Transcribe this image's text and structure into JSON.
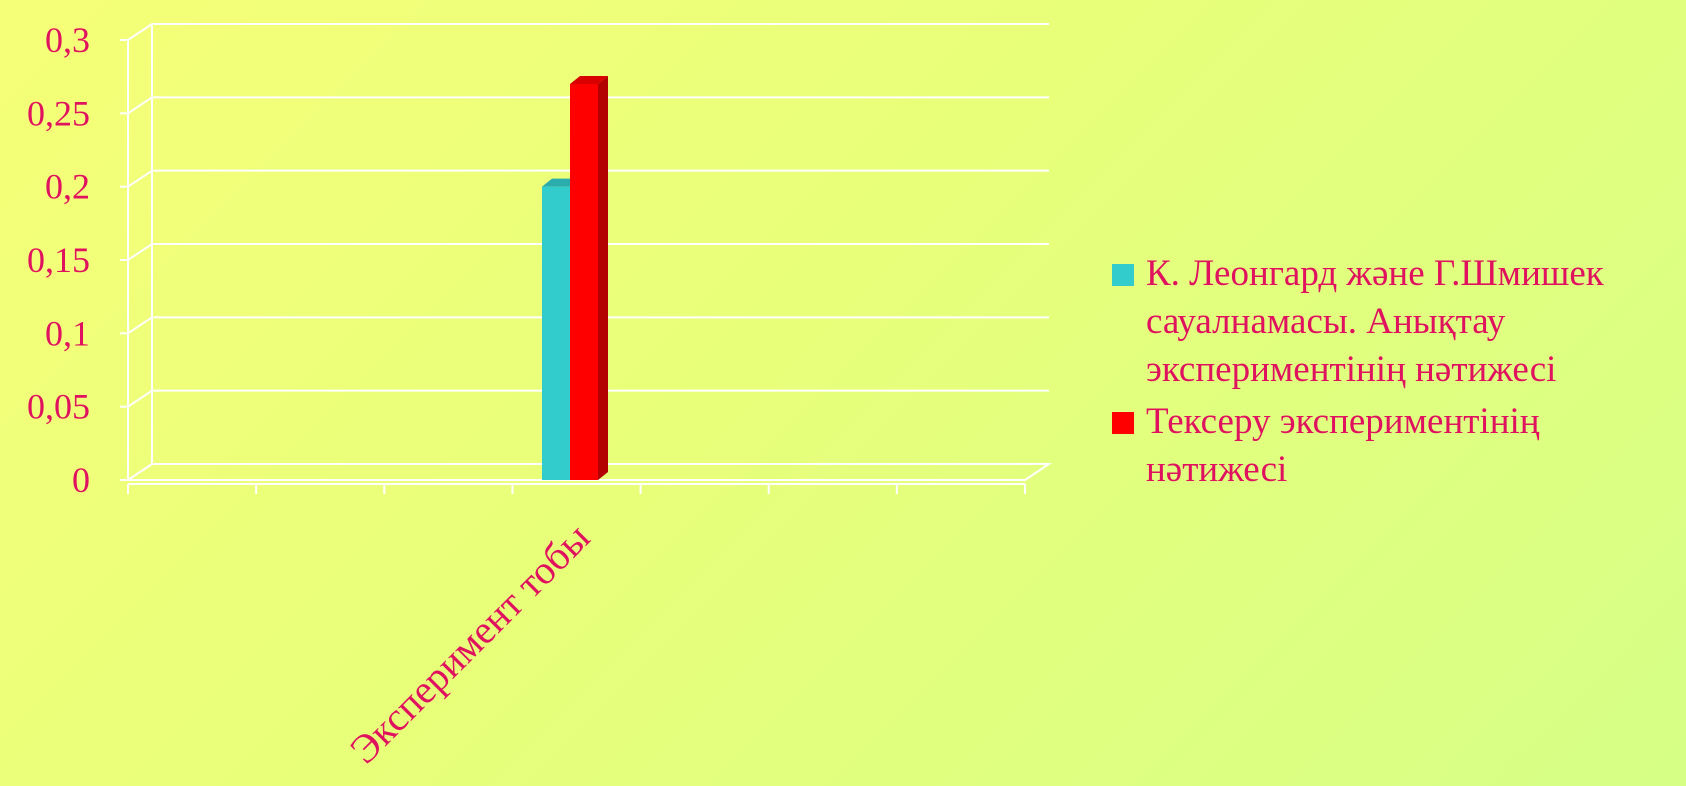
{
  "chart_data": {
    "type": "bar",
    "categories": [
      "Эксперимент тобы"
    ],
    "series": [
      {
        "name": "К. Леонгард және Г.Шмишек сауалнамасы. Анықтау экспериментінің нәтижесі",
        "values": [
          0.2
        ],
        "color": "#33cccc"
      },
      {
        "name": "Тексеру экспериментінің нәтижесі",
        "values": [
          0.27
        ],
        "color": "#ff0000"
      }
    ],
    "ylim": [
      0,
      0.3
    ],
    "yticks": [
      "0",
      "0,05",
      "0,1",
      "0,15",
      "0,2",
      "0,25",
      "0,3"
    ],
    "grid": true,
    "legend": "right",
    "text_color": "#e0115f"
  }
}
